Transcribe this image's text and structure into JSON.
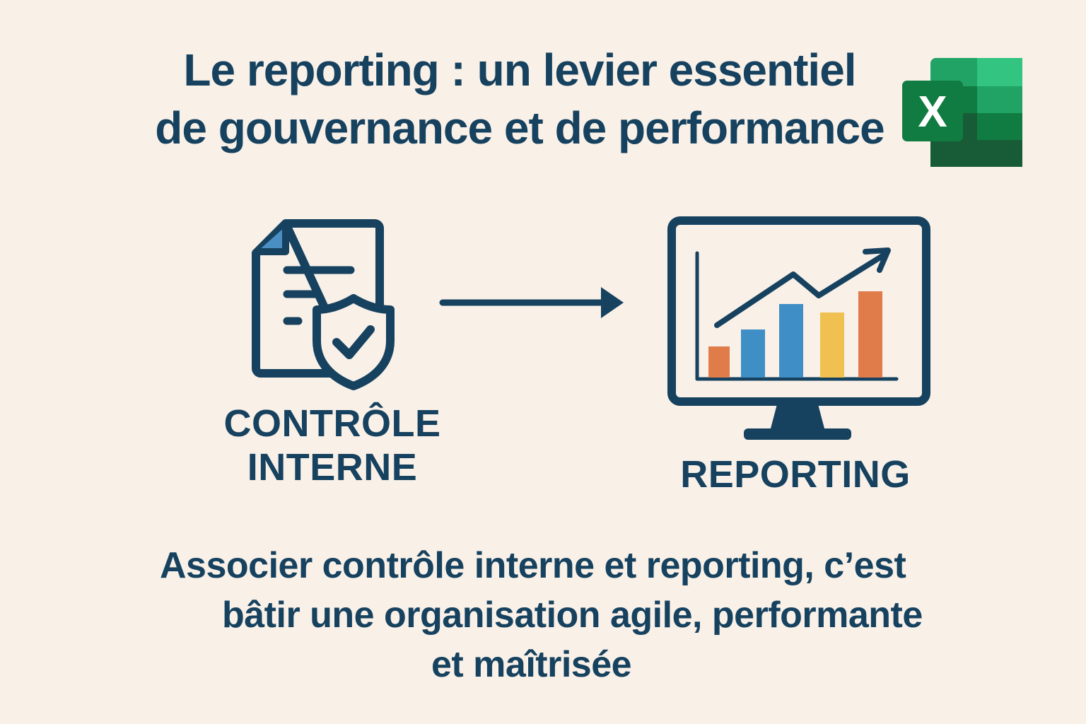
{
  "title": {
    "line1": "Le reporting : un levier essentiel",
    "line2": "de gouvernance et de performance"
  },
  "logo": {
    "icon": "excel-icon",
    "letter": "X",
    "colors": {
      "dark": "#185c37",
      "mid": "#21a366",
      "light": "#33c481",
      "badge": "#107c41"
    }
  },
  "left_block": {
    "icon": "document-shield-check-icon",
    "label_line1": "CONTRÔLE",
    "label_line2": "INTERNE"
  },
  "connector": {
    "icon": "arrow-right-icon"
  },
  "right_block": {
    "icon": "monitor-chart-icon",
    "label": "REPORTING",
    "bar_colors": [
      "#e07b4a",
      "#3f8ec6",
      "#3f8ec6",
      "#f0c050",
      "#e07b4a"
    ]
  },
  "conclusion": {
    "line1": "Associer contrôle interne et reporting, c’est",
    "line2": "bâtir une organisation agile, performante",
    "line3": "et maîtrisée"
  },
  "colors": {
    "background": "#f9f0e8",
    "primary": "#16425f",
    "accent_blue": "#4a8ec4"
  }
}
